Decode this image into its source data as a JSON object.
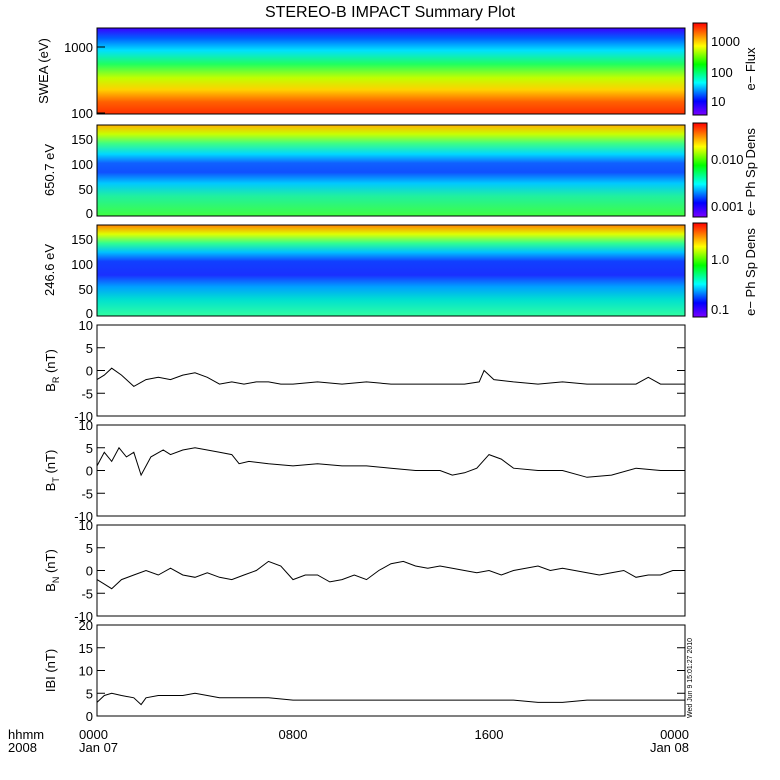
{
  "title": "STEREO-B IMPACT Summary Plot",
  "time_axis": {
    "hhmm_label": "hhmm",
    "year_label": "2008",
    "ticks": [
      {
        "hour": 0,
        "top": "0000",
        "bottom": "Jan 07"
      },
      {
        "hour": 8,
        "top": "0800",
        "bottom": ""
      },
      {
        "hour": 16,
        "top": "1600",
        "bottom": ""
      },
      {
        "hour": 24,
        "top": "0000",
        "bottom": "Jan 08"
      }
    ]
  },
  "timestamp": "Wed Jun 9 15:01:27 2010",
  "chart_data": [
    {
      "type": "heatmap",
      "name": "swea",
      "ylabel": "SWEA (eV)",
      "y_ticks": [
        "1000",
        "100"
      ],
      "colorbar_label": "e− Flux",
      "colorbar_ticks": [
        "1000",
        "100",
        "10"
      ],
      "colorscale": "rainbow"
    },
    {
      "type": "heatmap",
      "name": "pad-650",
      "ylabel": "650.7 eV",
      "y_ticks": [
        "150",
        "100",
        "50",
        "0"
      ],
      "ylim": [
        0,
        180
      ],
      "colorbar_label": "e− Ph Sp Dens",
      "colorbar_ticks": [
        "0.010",
        "0.001"
      ],
      "colorscale": "rainbow"
    },
    {
      "type": "heatmap",
      "name": "pad-246",
      "ylabel": "246.6 eV",
      "y_ticks": [
        "150",
        "100",
        "50",
        "0"
      ],
      "ylim": [
        0,
        180
      ],
      "colorbar_label": "e− Ph Sp Dens",
      "colorbar_ticks": [
        "1.0",
        "0.1"
      ],
      "colorscale": "rainbow"
    },
    {
      "type": "line",
      "name": "br",
      "ylabel_main": "B",
      "ylabel_sub": "R",
      "ylabel_unit": "(nT)",
      "ylim": [
        -10,
        10
      ],
      "y_ticks": [
        -10,
        -5,
        0,
        5,
        10
      ],
      "x": [
        0,
        0.3,
        0.6,
        1.0,
        1.5,
        2,
        2.5,
        3,
        3.5,
        4,
        4.5,
        5,
        5.5,
        6,
        6.5,
        7,
        7.5,
        8,
        9,
        10,
        11,
        12,
        13,
        14,
        15,
        15.6,
        15.8,
        16.2,
        17,
        18,
        19,
        20,
        21,
        22,
        22.5,
        23,
        24
      ],
      "y": [
        -2,
        -1,
        0.5,
        -1,
        -3.5,
        -2,
        -1.5,
        -2,
        -1,
        -0.5,
        -1.5,
        -3,
        -2.5,
        -3,
        -2.5,
        -2.5,
        -3,
        -3,
        -2.5,
        -3,
        -2.5,
        -3,
        -3,
        -3,
        -3,
        -2.5,
        0,
        -2,
        -2.5,
        -3,
        -2.5,
        -3,
        -3,
        -3,
        -1.5,
        -3,
        -3
      ]
    },
    {
      "type": "line",
      "name": "bt",
      "ylabel_main": "B",
      "ylabel_sub": "T",
      "ylabel_unit": "(nT)",
      "ylim": [
        -10,
        10
      ],
      "y_ticks": [
        -10,
        -5,
        0,
        5,
        10
      ],
      "x": [
        0,
        0.3,
        0.6,
        0.9,
        1.2,
        1.5,
        1.8,
        2.2,
        2.7,
        3,
        3.5,
        4,
        4.5,
        5,
        5.5,
        5.8,
        6.2,
        7,
        8,
        9,
        10,
        11,
        12,
        13,
        14,
        14.5,
        15,
        15.5,
        16,
        16.5,
        17,
        18,
        19,
        20,
        21,
        22,
        23,
        24
      ],
      "y": [
        1,
        4,
        2,
        5,
        3,
        4,
        -1,
        3,
        4.5,
        3.5,
        4.5,
        5,
        4.5,
        4,
        3.5,
        1.5,
        2,
        1.5,
        1,
        1.5,
        1,
        1,
        0.5,
        0,
        0,
        -1,
        -0.5,
        0.5,
        3.5,
        2.5,
        0.5,
        0,
        0,
        -1.5,
        -1,
        0.5,
        0,
        0
      ]
    },
    {
      "type": "line",
      "name": "bn",
      "ylabel_main": "B",
      "ylabel_sub": "N",
      "ylabel_unit": "(nT)",
      "ylim": [
        -10,
        10
      ],
      "y_ticks": [
        -10,
        -5,
        0,
        5,
        10
      ],
      "x": [
        0,
        0.3,
        0.6,
        1.0,
        1.5,
        2,
        2.5,
        3,
        3.5,
        4,
        4.5,
        5,
        5.5,
        6,
        6.5,
        7,
        7.5,
        8,
        8.5,
        9,
        9.5,
        10,
        10.5,
        11,
        11.5,
        12,
        12.5,
        13,
        13.5,
        14,
        14.5,
        15,
        15.5,
        16,
        16.5,
        17,
        17.5,
        18,
        18.5,
        19,
        19.5,
        20,
        20.5,
        21,
        21.5,
        22,
        22.5,
        23,
        23.5,
        24
      ],
      "y": [
        -2,
        -3,
        -4,
        -2,
        -1,
        0,
        -1,
        0.5,
        -1,
        -1.5,
        -0.5,
        -1.5,
        -2,
        -1,
        0,
        2,
        1,
        -2,
        -1,
        -1,
        -2.5,
        -2,
        -1,
        -2,
        0,
        1.5,
        2,
        1,
        0.5,
        1,
        0.5,
        0,
        -0.5,
        0,
        -1,
        0,
        0.5,
        1,
        0,
        0.5,
        0,
        -0.5,
        -1,
        -0.5,
        0,
        -1.5,
        -1,
        -1,
        0,
        0
      ]
    },
    {
      "type": "line",
      "name": "bmag",
      "ylabel_main": "IBI",
      "ylabel_unit": "(nT)",
      "ylim": [
        0,
        20
      ],
      "y_ticks": [
        0,
        5,
        10,
        15,
        20
      ],
      "x": [
        0,
        0.3,
        0.6,
        1.0,
        1.5,
        1.8,
        2.0,
        2.5,
        3,
        3.5,
        4,
        4.5,
        5,
        6,
        7,
        8,
        9,
        10,
        11,
        12,
        13,
        14,
        15,
        16,
        17,
        18,
        19,
        20,
        21,
        22,
        23,
        24
      ],
      "y": [
        3,
        4.5,
        5,
        4.5,
        4,
        2.5,
        4,
        4.5,
        4.5,
        4.5,
        5,
        4.5,
        4,
        4,
        4,
        3.5,
        3.5,
        3.5,
        3.5,
        3.5,
        3.5,
        3.5,
        3.5,
        3.5,
        3.5,
        3,
        3,
        3.5,
        3.5,
        3.5,
        3.5,
        3.5
      ]
    }
  ]
}
